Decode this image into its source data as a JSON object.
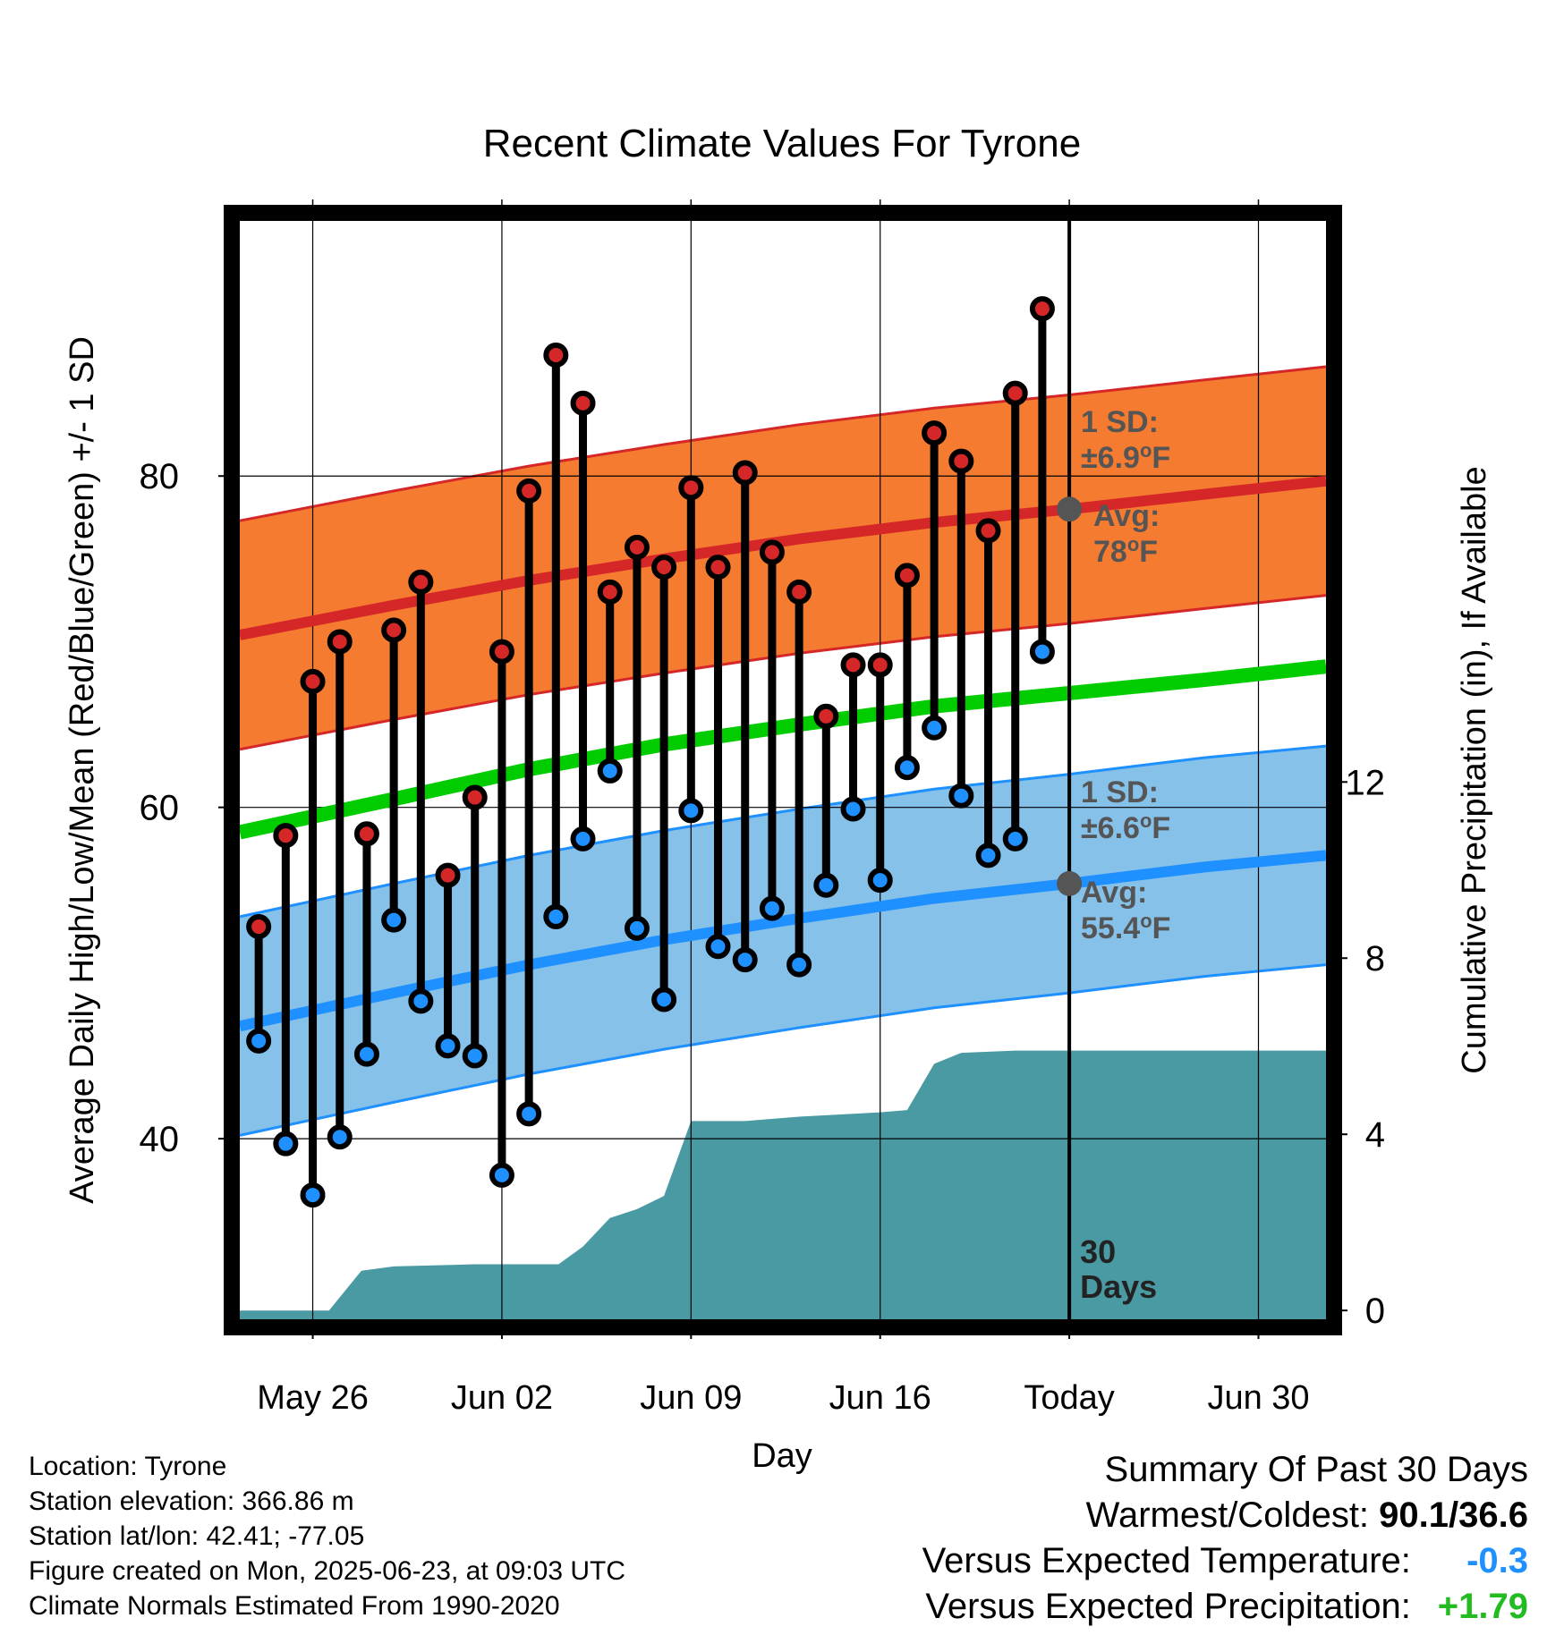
{
  "colors": {
    "high": "#d62728",
    "low": "#1e90ff",
    "mean": "#00cc00",
    "high_band": "#f47b30",
    "low_band": "#85c1e9",
    "precip": "#4a9aa3",
    "dark_text": "#555555",
    "cold_value": "#1e90ff",
    "wet_value": "#22bb22"
  },
  "chart_data": {
    "type": "line",
    "title": "Recent Climate Values For Tyrone",
    "xlabel": "Day",
    "ylabel": "Average Daily High/Low/Mean (Red/Blue/Green) +/- 1 SD",
    "y2label": "Cumulative Precipitation (in), If Available",
    "x_ticks": [
      {
        "day": 2,
        "label": "May 26"
      },
      {
        "day": 9,
        "label": "Jun 02"
      },
      {
        "day": 16,
        "label": "Jun 09"
      },
      {
        "day": 23,
        "label": "Jun 16"
      },
      {
        "day": 30,
        "label": "Today"
      },
      {
        "day": 37,
        "label": "Jun 30"
      }
    ],
    "xlim": [
      -0.7,
      39.5
    ],
    "ylim": [
      29.1,
      95.4
    ],
    "y_ticks": [
      40,
      60,
      80
    ],
    "y_minor_ticks": [
      30,
      50,
      70,
      90
    ],
    "y2lim": [
      -0.2,
      24.74
    ],
    "y2_ticks": [
      0,
      4,
      8,
      12
    ],
    "grid": true,
    "today_marker": {
      "day": 30,
      "label_line1": "30",
      "label_line2": "Days"
    },
    "daily_obs": [
      {
        "day": 0,
        "high": 52.8,
        "low": 45.9
      },
      {
        "day": 1,
        "high": 58.3,
        "low": 39.7
      },
      {
        "day": 2,
        "high": 67.6,
        "low": 36.6
      },
      {
        "day": 3,
        "high": 70.0,
        "low": 40.1
      },
      {
        "day": 4,
        "high": 58.4,
        "low": 45.1
      },
      {
        "day": 5,
        "high": 70.7,
        "low": 53.2
      },
      {
        "day": 6,
        "high": 73.6,
        "low": 48.3
      },
      {
        "day": 7,
        "high": 55.9,
        "low": 45.6
      },
      {
        "day": 8,
        "high": 60.6,
        "low": 45.0
      },
      {
        "day": 9,
        "high": 69.4,
        "low": 37.8
      },
      {
        "day": 10,
        "high": 79.1,
        "low": 41.5
      },
      {
        "day": 11,
        "high": 87.3,
        "low": 53.4
      },
      {
        "day": 12,
        "high": 84.4,
        "low": 58.1
      },
      {
        "day": 13,
        "high": 73.0,
        "low": 62.2
      },
      {
        "day": 14,
        "high": 75.7,
        "low": 52.7
      },
      {
        "day": 15,
        "high": 74.5,
        "low": 48.4
      },
      {
        "day": 16,
        "high": 79.3,
        "low": 59.8
      },
      {
        "day": 17,
        "high": 74.5,
        "low": 51.6
      },
      {
        "day": 18,
        "high": 80.2,
        "low": 50.8
      },
      {
        "day": 19,
        "high": 75.4,
        "low": 53.9
      },
      {
        "day": 20,
        "high": 73.0,
        "low": 50.5
      },
      {
        "day": 21,
        "high": 65.5,
        "low": 55.3
      },
      {
        "day": 22,
        "high": 68.6,
        "low": 59.9
      },
      {
        "day": 23,
        "high": 68.6,
        "low": 55.6
      },
      {
        "day": 24,
        "high": 74.0,
        "low": 62.4
      },
      {
        "day": 25,
        "high": 82.6,
        "low": 64.8
      },
      {
        "day": 26,
        "high": 80.9,
        "low": 60.7
      },
      {
        "day": 27,
        "high": 76.7,
        "low": 57.1
      },
      {
        "day": 28,
        "high": 85.0,
        "low": 58.1
      },
      {
        "day": 29,
        "high": 90.1,
        "low": 69.4
      }
    ],
    "normals": {
      "days": [
        -0.7,
        5,
        10,
        15,
        20,
        25,
        30,
        35,
        39.5
      ],
      "avg_high": [
        70.4,
        72.2,
        73.7,
        75.0,
        76.2,
        77.2,
        78.0,
        78.9,
        79.7
      ],
      "avg_mean": [
        58.5,
        60.5,
        62.3,
        63.8,
        65.0,
        66.1,
        66.9,
        67.7,
        68.5
      ],
      "avg_low": [
        46.8,
        48.8,
        50.5,
        52.0,
        53.3,
        54.5,
        55.4,
        56.4,
        57.1
      ],
      "high_sd": 6.9,
      "low_sd": 6.6
    },
    "high_annotation": {
      "sd_label": "1 SD:",
      "sd_value": "±6.9",
      "avg_label": "Avg:",
      "avg_value": "78",
      "unit": "F",
      "avg": 78.0
    },
    "low_annotation": {
      "sd_label": "1 SD:",
      "sd_value": "±6.6",
      "avg_label": "Avg:",
      "avg_value": "55.4",
      "unit": "F",
      "avg": 55.4
    },
    "precip_cumulative": [
      {
        "day": -0.7,
        "value": 0
      },
      {
        "day": 2.6,
        "value": 0
      },
      {
        "day": 3.8,
        "value": 0.9
      },
      {
        "day": 5,
        "value": 1.0
      },
      {
        "day": 8,
        "value": 1.05
      },
      {
        "day": 11.1,
        "value": 1.05
      },
      {
        "day": 12,
        "value": 1.45
      },
      {
        "day": 13,
        "value": 2.1
      },
      {
        "day": 14,
        "value": 2.3
      },
      {
        "day": 15,
        "value": 2.6
      },
      {
        "day": 16,
        "value": 4.3
      },
      {
        "day": 18,
        "value": 4.3
      },
      {
        "day": 20,
        "value": 4.4
      },
      {
        "day": 23,
        "value": 4.5
      },
      {
        "day": 24,
        "value": 4.55
      },
      {
        "day": 25,
        "value": 5.6
      },
      {
        "day": 26,
        "value": 5.85
      },
      {
        "day": 28,
        "value": 5.9
      },
      {
        "day": 39.5,
        "value": 5.9
      }
    ]
  },
  "station": {
    "location": "Location: Tyrone",
    "elevation": "Station elevation: 366.86 m",
    "latlon": "Station lat/lon: 42.41; -77.05",
    "created": "Figure created on Mon, 2025-06-23, at 09:03 UTC",
    "normals": "Climate Normals Estimated From 1990-2020"
  },
  "summary": {
    "title": "Summary Of Past 30 Days",
    "warm_cold_label": "Warmest/Coldest:",
    "warm_cold_value": "90.1/36.6",
    "temp_label": "Versus Expected Temperature:",
    "temp_value": "-0.3",
    "precip_label": "Versus Expected Precipitation:",
    "precip_value": "+1.79"
  }
}
